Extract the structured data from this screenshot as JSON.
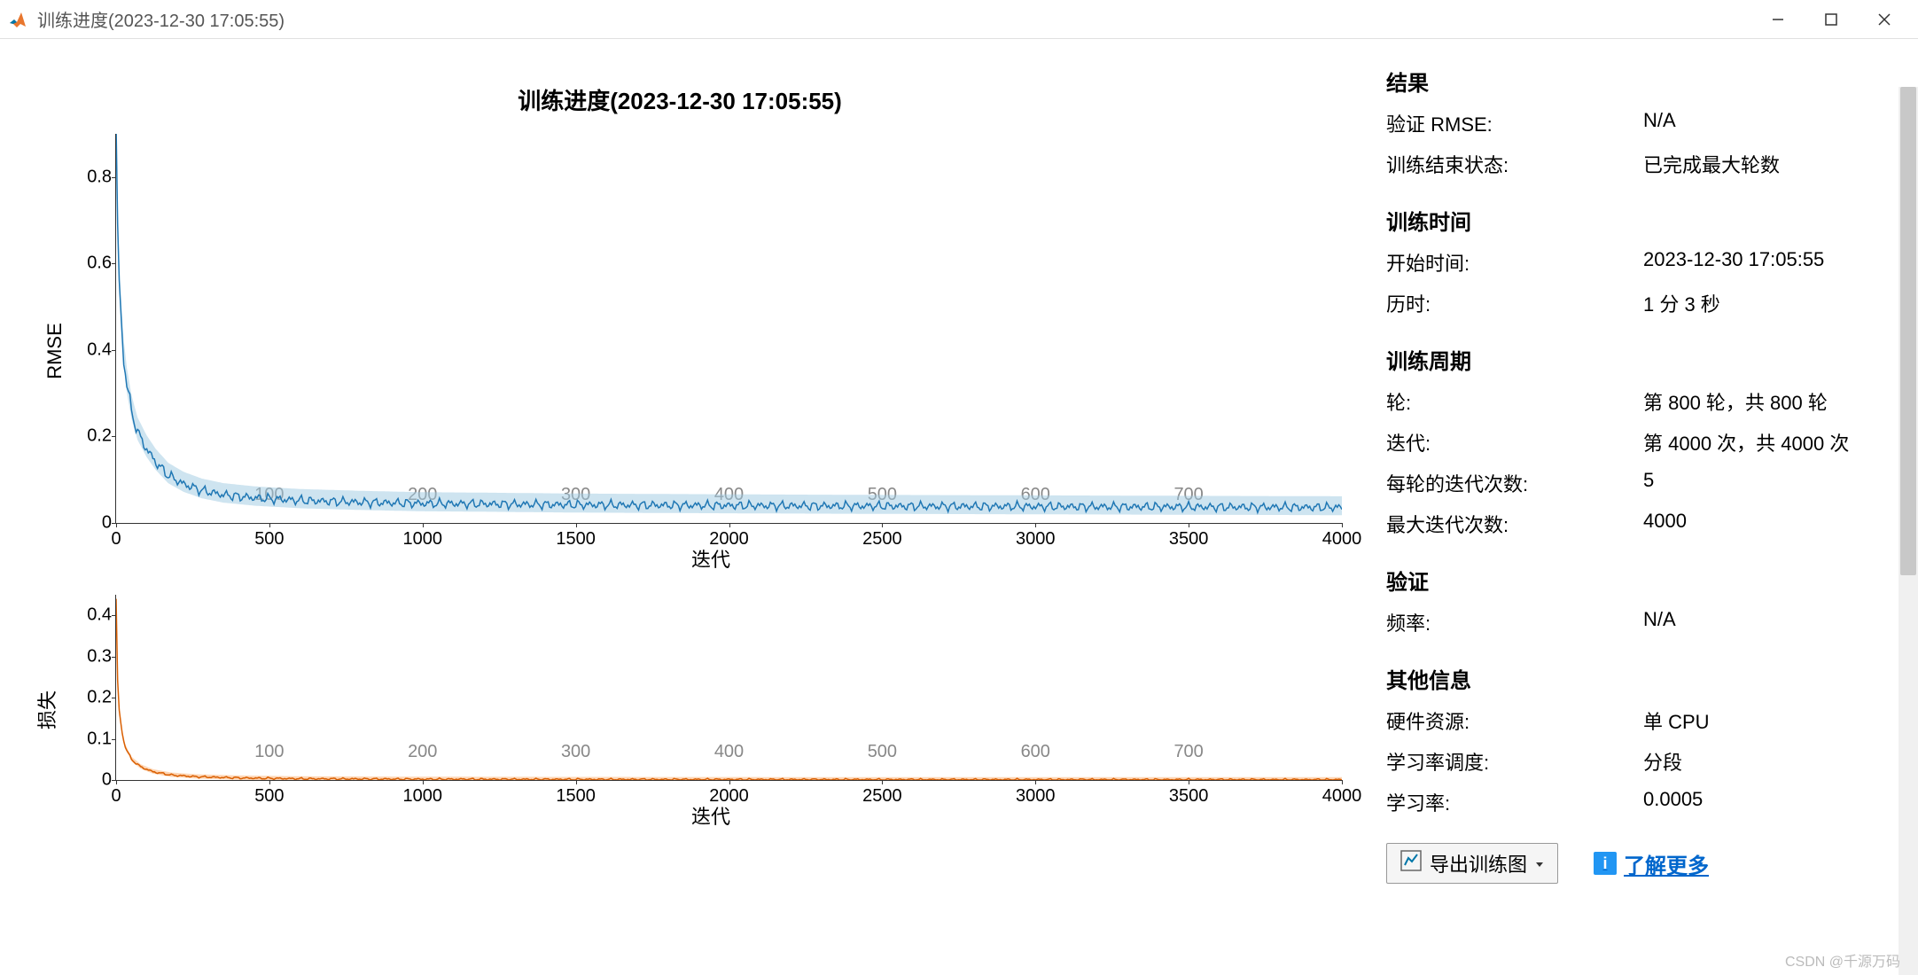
{
  "window": {
    "title": "训练进度(2023-12-30 17:05:55)",
    "icon_colors": {
      "bg": "#ffffff",
      "orange": "#e8762d",
      "blue": "#0076a8"
    }
  },
  "chart": {
    "title": "训练进度(2023-12-30 17:05:55)",
    "background_color": "#ffffff",
    "axis_color": "#333333",
    "text_color": "#000000",
    "epoch_label_color": "#888888"
  },
  "chart_rmse": {
    "type": "line",
    "ylabel": "RMSE",
    "xlabel": "迭代",
    "ylim": [
      0,
      0.9
    ],
    "yticks": [
      0,
      0.2,
      0.4,
      0.6,
      0.8
    ],
    "xlim": [
      0,
      4000
    ],
    "xticks": [
      0,
      500,
      1000,
      1500,
      2000,
      2500,
      3000,
      3500,
      4000
    ],
    "epoch_marks": [
      100,
      200,
      300,
      400,
      500,
      600,
      700
    ],
    "line_color": "#1f77b4",
    "fill_color": "#9ecae1",
    "line_width": 1.5,
    "data": [
      [
        0,
        0.92
      ],
      [
        2,
        0.78
      ],
      [
        5,
        0.68
      ],
      [
        8,
        0.6
      ],
      [
        12,
        0.52
      ],
      [
        18,
        0.45
      ],
      [
        25,
        0.38
      ],
      [
        35,
        0.32
      ],
      [
        50,
        0.26
      ],
      [
        70,
        0.21
      ],
      [
        100,
        0.17
      ],
      [
        130,
        0.14
      ],
      [
        170,
        0.11
      ],
      [
        220,
        0.09
      ],
      [
        280,
        0.075
      ],
      [
        350,
        0.065
      ],
      [
        450,
        0.058
      ],
      [
        600,
        0.052
      ],
      [
        800,
        0.048
      ],
      [
        1000,
        0.045
      ],
      [
        1200,
        0.044
      ],
      [
        1500,
        0.042
      ],
      [
        1800,
        0.041
      ],
      [
        2100,
        0.04
      ],
      [
        2500,
        0.039
      ],
      [
        3000,
        0.038
      ],
      [
        3500,
        0.037
      ],
      [
        4000,
        0.036
      ]
    ],
    "noise_amplitude": 0.012
  },
  "chart_loss": {
    "type": "line",
    "ylabel": "损失",
    "xlabel": "迭代",
    "ylim": [
      0,
      0.45
    ],
    "yticks": [
      0,
      0.1,
      0.2,
      0.3,
      0.4
    ],
    "xlim": [
      0,
      4000
    ],
    "xticks": [
      0,
      500,
      1000,
      1500,
      2000,
      2500,
      3000,
      3500,
      4000
    ],
    "epoch_marks": [
      100,
      200,
      300,
      400,
      500,
      600,
      700
    ],
    "line_color": "#d95f02",
    "fill_color": "#fdae6b",
    "line_width": 1.5,
    "data": [
      [
        0,
        0.44
      ],
      [
        2,
        0.32
      ],
      [
        5,
        0.24
      ],
      [
        10,
        0.17
      ],
      [
        18,
        0.12
      ],
      [
        30,
        0.08
      ],
      [
        50,
        0.05
      ],
      [
        80,
        0.032
      ],
      [
        120,
        0.02
      ],
      [
        180,
        0.012
      ],
      [
        260,
        0.008
      ],
      [
        400,
        0.005
      ],
      [
        600,
        0.003
      ],
      [
        1000,
        0.002
      ],
      [
        1500,
        0.0015
      ],
      [
        2500,
        0.001
      ],
      [
        4000,
        0.0008
      ]
    ],
    "noise_amplitude": 0.003
  },
  "info": {
    "results": {
      "heading": "结果",
      "val_rmse_label": "验证 RMSE:",
      "val_rmse_value": "N/A",
      "final_state_label": "训练结束状态:",
      "final_state_value": "已完成最大轮数"
    },
    "time": {
      "heading": "训练时间",
      "start_label": "开始时间:",
      "start_value": "2023-12-30 17:05:55",
      "elapsed_label": "历时:",
      "elapsed_value": "1 分 3 秒"
    },
    "cycle": {
      "heading": "训练周期",
      "epoch_label": "轮:",
      "epoch_value": "第 800 轮，共 800 轮",
      "iter_label": "迭代:",
      "iter_value": "第 4000 次，共 4000 次",
      "iter_per_epoch_label": "每轮的迭代次数:",
      "iter_per_epoch_value": "5",
      "max_iter_label": "最大迭代次数:",
      "max_iter_value": "4000"
    },
    "validation": {
      "heading": "验证",
      "freq_label": "频率:",
      "freq_value": "N/A"
    },
    "other": {
      "heading": "其他信息",
      "hw_label": "硬件资源:",
      "hw_value": "单 CPU",
      "lr_schedule_label": "学习率调度:",
      "lr_schedule_value": "分段",
      "lr_label": "学习率:",
      "lr_value": "0.0005"
    }
  },
  "buttons": {
    "export_label": "导出训练图",
    "learn_more_label": "了解更多",
    "info_glyph": "i"
  },
  "watermark": "CSDN @千源万码"
}
